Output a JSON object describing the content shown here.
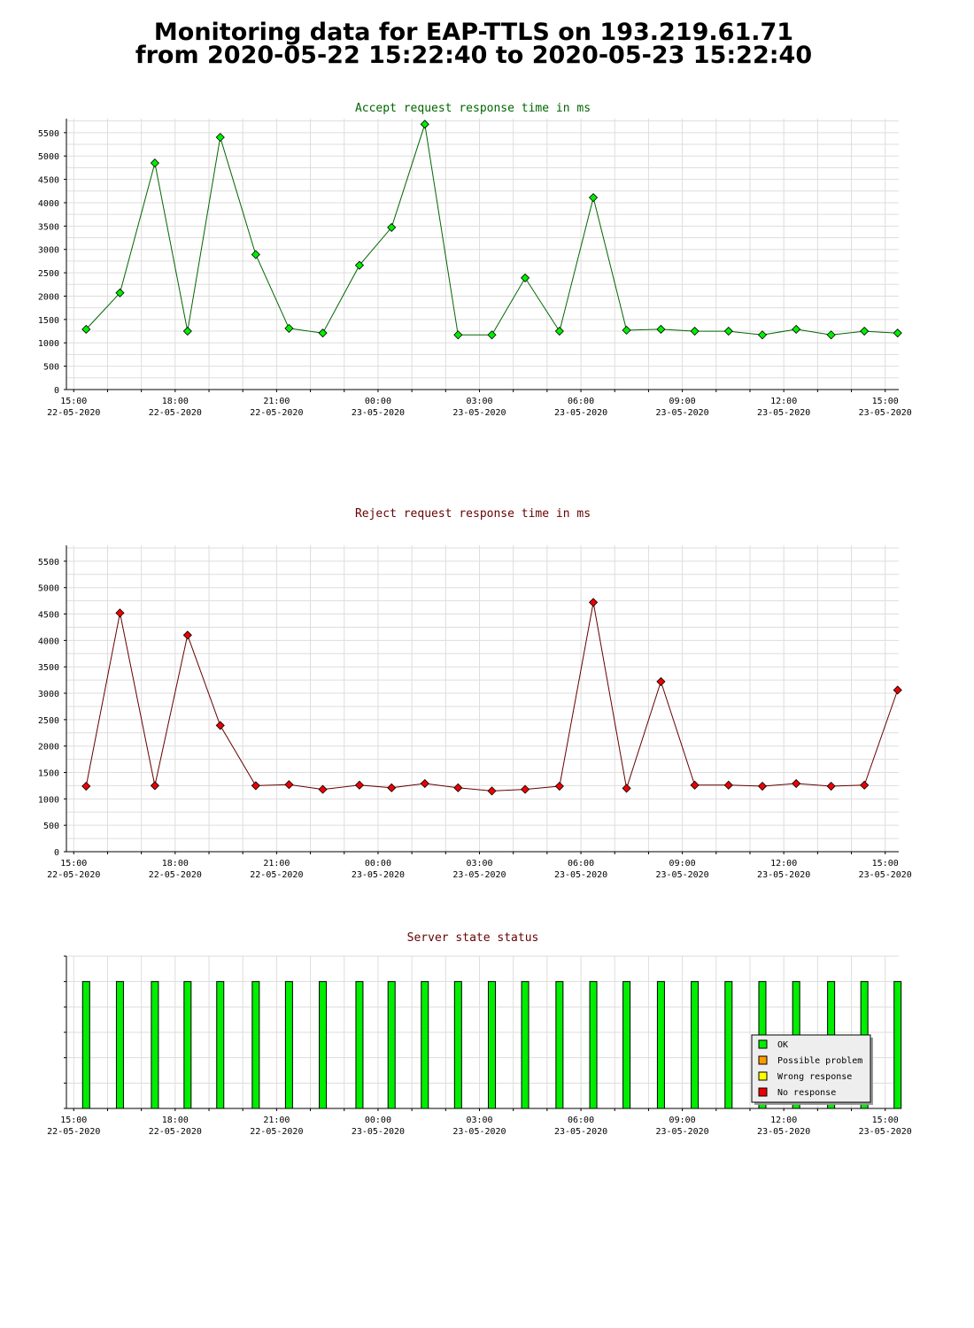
{
  "page": {
    "title_line1": "Monitoring data for EAP-TTLS on 193.219.61.71",
    "title_line2": "from 2020-05-22 15:22:40 to 2020-05-23 15:22:40"
  },
  "colors": {
    "accept_line": "#006600",
    "accept_marker": "#00ee00",
    "reject_line": "#660000",
    "reject_marker": "#ee0000",
    "accept_title": "#006600",
    "reject_title": "#660000",
    "status_title": "#660000",
    "ok": "#00ee00",
    "possible_problem": "#ff9900",
    "wrong_response": "#ffff00",
    "no_response": "#ee0000",
    "grid": "#dddddd"
  },
  "x_axis": {
    "time_labels": [
      "15:00",
      "18:00",
      "21:00",
      "00:00",
      "03:00",
      "06:00",
      "09:00",
      "12:00",
      "15:00"
    ],
    "date_labels": [
      "22-05-2020",
      "22-05-2020",
      "22-05-2020",
      "23-05-2020",
      "23-05-2020",
      "23-05-2020",
      "23-05-2020",
      "23-05-2020",
      "23-05-2020"
    ]
  },
  "chart_data": [
    {
      "type": "line",
      "title": "Accept request response time in ms",
      "ylim": [
        0,
        5800
      ],
      "yticks": [
        0,
        500,
        1000,
        1500,
        2000,
        2500,
        3000,
        3500,
        4000,
        4500,
        5000,
        5500
      ],
      "xlim": [
        "2020-05-22 14:47",
        "2020-05-23 15:24"
      ],
      "grid": true,
      "series": [
        {
          "x": [
            "2020-05-22 15:22",
            "2020-05-22 16:22",
            "2020-05-22 17:24",
            "2020-05-22 18:22",
            "2020-05-22 19:20",
            "2020-05-22 20:23",
            "2020-05-22 21:22",
            "2020-05-22 22:22",
            "2020-05-22 23:27",
            "2020-05-23 00:24",
            "2020-05-23 01:23",
            "2020-05-23 02:22",
            "2020-05-23 03:22",
            "2020-05-23 04:21",
            "2020-05-23 05:22",
            "2020-05-23 06:22",
            "2020-05-23 07:21",
            "2020-05-23 08:22",
            "2020-05-23 09:22",
            "2020-05-23 10:22",
            "2020-05-23 11:22",
            "2020-05-23 12:22",
            "2020-05-23 13:24",
            "2020-05-23 14:23",
            "2020-05-23 15:22"
          ],
          "values": [
            1290,
            2070,
            4850,
            1250,
            5400,
            2890,
            1310,
            1210,
            2660,
            3470,
            5680,
            1170,
            1170,
            2390,
            1250,
            4110,
            1270,
            1290,
            1250,
            1250,
            1170,
            1290,
            1170,
            1250,
            1210
          ]
        }
      ]
    },
    {
      "type": "line",
      "title": "Reject request response time in ms",
      "ylim": [
        0,
        5800
      ],
      "yticks": [
        0,
        500,
        1000,
        1500,
        2000,
        2500,
        3000,
        3500,
        4000,
        4500,
        5000,
        5500
      ],
      "xlim": [
        "2020-05-22 14:47",
        "2020-05-23 15:24"
      ],
      "grid": true,
      "series": [
        {
          "x": [
            "2020-05-22 15:22",
            "2020-05-22 16:22",
            "2020-05-22 17:24",
            "2020-05-22 18:22",
            "2020-05-22 19:20",
            "2020-05-22 20:23",
            "2020-05-22 21:22",
            "2020-05-22 22:22",
            "2020-05-22 23:27",
            "2020-05-23 00:24",
            "2020-05-23 01:23",
            "2020-05-23 02:22",
            "2020-05-23 03:22",
            "2020-05-23 04:21",
            "2020-05-23 05:22",
            "2020-05-23 06:22",
            "2020-05-23 07:21",
            "2020-05-23 08:22",
            "2020-05-23 09:22",
            "2020-05-23 10:22",
            "2020-05-23 11:22",
            "2020-05-23 12:22",
            "2020-05-23 13:24",
            "2020-05-23 14:23",
            "2020-05-23 15:22"
          ],
          "values": [
            1240,
            4520,
            1250,
            4100,
            2390,
            1250,
            1270,
            1180,
            1260,
            1210,
            1290,
            1210,
            1150,
            1180,
            1240,
            4720,
            1200,
            3220,
            1260,
            1260,
            1240,
            1290,
            1240,
            1260,
            3060
          ]
        }
      ]
    },
    {
      "type": "bar",
      "title": "Server state status",
      "xlim": [
        "2020-05-22 14:47",
        "2020-05-23 15:24"
      ],
      "grid": true,
      "legend": [
        "OK",
        "Possible problem",
        "Wrong response",
        "No response"
      ],
      "legend_placement": "bottom-right",
      "x": [
        "2020-05-22 15:22",
        "2020-05-22 16:22",
        "2020-05-22 17:24",
        "2020-05-22 18:22",
        "2020-05-22 19:20",
        "2020-05-22 20:23",
        "2020-05-22 21:22",
        "2020-05-22 22:22",
        "2020-05-22 23:27",
        "2020-05-23 00:24",
        "2020-05-23 01:23",
        "2020-05-23 02:22",
        "2020-05-23 03:22",
        "2020-05-23 04:21",
        "2020-05-23 05:22",
        "2020-05-23 06:22",
        "2020-05-23 07:21",
        "2020-05-23 08:22",
        "2020-05-23 09:22",
        "2020-05-23 10:22",
        "2020-05-23 11:22",
        "2020-05-23 12:22",
        "2020-05-23 13:24",
        "2020-05-23 14:23",
        "2020-05-23 15:22"
      ],
      "status": [
        "OK",
        "OK",
        "OK",
        "OK",
        "OK",
        "OK",
        "OK",
        "OK",
        "OK",
        "OK",
        "OK",
        "OK",
        "OK",
        "OK",
        "OK",
        "OK",
        "OK",
        "OK",
        "OK",
        "OK",
        "OK",
        "OK",
        "OK",
        "OK",
        "OK"
      ]
    }
  ]
}
